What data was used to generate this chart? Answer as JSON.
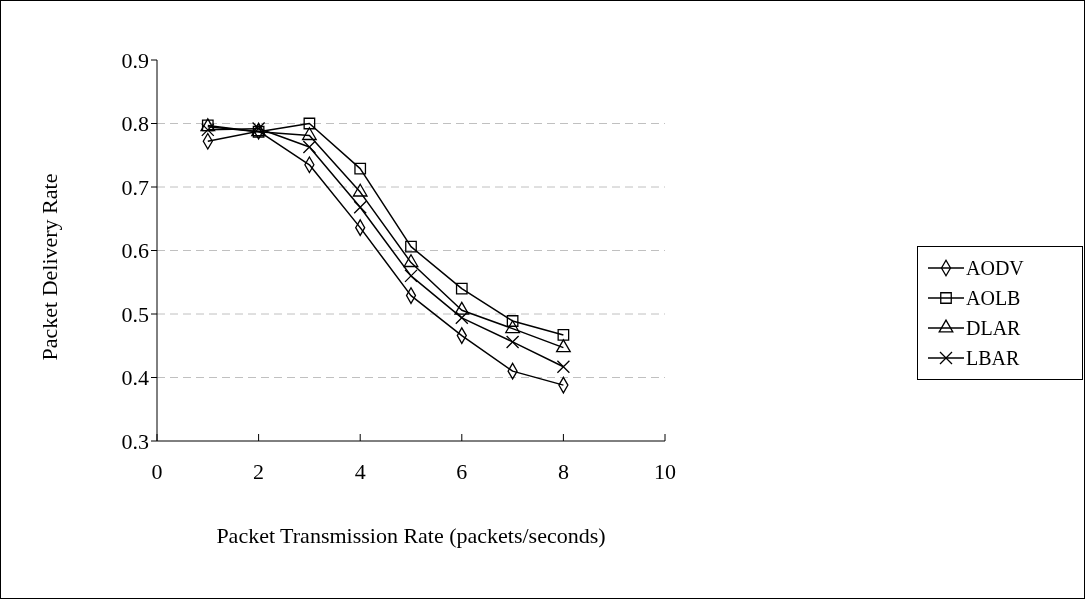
{
  "chart_data": {
    "type": "line",
    "xlabel": "Packet Transmission Rate (packets/seconds)",
    "ylabel": "Packet Delivery Rate",
    "x": [
      1,
      2,
      3,
      4,
      5,
      6,
      7,
      8
    ],
    "series": [
      {
        "name": "AODV",
        "color": "#000000",
        "marker": "diamond",
        "values": [
          0.772,
          0.788,
          0.735,
          0.636,
          0.529,
          0.466,
          0.41,
          0.388
        ]
      },
      {
        "name": "AOLB",
        "color": "#000000",
        "marker": "square",
        "values": [
          0.797,
          0.787,
          0.8,
          0.729,
          0.606,
          0.54,
          0.489,
          0.467
        ]
      },
      {
        "name": "DLAR",
        "color": "#000000",
        "marker": "triangle",
        "values": [
          0.795,
          0.787,
          0.781,
          0.692,
          0.581,
          0.506,
          0.477,
          0.447
        ]
      },
      {
        "name": "LBAR",
        "color": "#000000",
        "marker": "cross",
        "values": [
          0.79,
          0.792,
          0.763,
          0.668,
          0.56,
          0.494,
          0.456,
          0.417
        ]
      }
    ],
    "xlim": [
      0,
      10
    ],
    "xticks": [
      0,
      2,
      4,
      6,
      8,
      10
    ],
    "ylim": [
      0.3,
      0.9
    ],
    "yticks": [
      0.3,
      0.4,
      0.5,
      0.6,
      0.7,
      0.8,
      0.9
    ],
    "grid": "y",
    "legend": "right",
    "line_style": "solid"
  }
}
